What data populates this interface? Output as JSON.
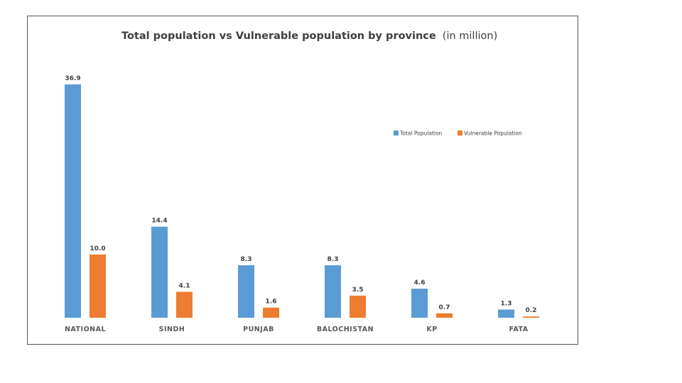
{
  "chart_data": {
    "type": "bar",
    "title": "Total population vs Vulnerable  population by province",
    "title_unit": "(in million)",
    "categories": [
      "NATIONAL",
      "SINDH",
      "PUNJAB",
      "BALOCHISTAN",
      "KP",
      "FATA"
    ],
    "series": [
      {
        "name": "Total Population",
        "color": "#5B9BD5",
        "values": [
          36.9,
          14.4,
          8.3,
          8.3,
          4.6,
          1.3
        ],
        "labels": [
          "36.9",
          "14.4",
          "8.3",
          "8.3",
          "4.6",
          "1.3"
        ]
      },
      {
        "name": "Vulnerable Population",
        "color": "#ED7D31",
        "values": [
          10.0,
          4.1,
          1.6,
          3.5,
          0.7,
          0.2
        ],
        "labels": [
          "10.0",
          "4.1",
          "1.6",
          "3.5",
          "0.7",
          "0.2"
        ]
      }
    ],
    "xlabel": "",
    "ylabel": "",
    "ylim": [
      0,
      36.9
    ],
    "grid": false,
    "legend_position": "right"
  }
}
